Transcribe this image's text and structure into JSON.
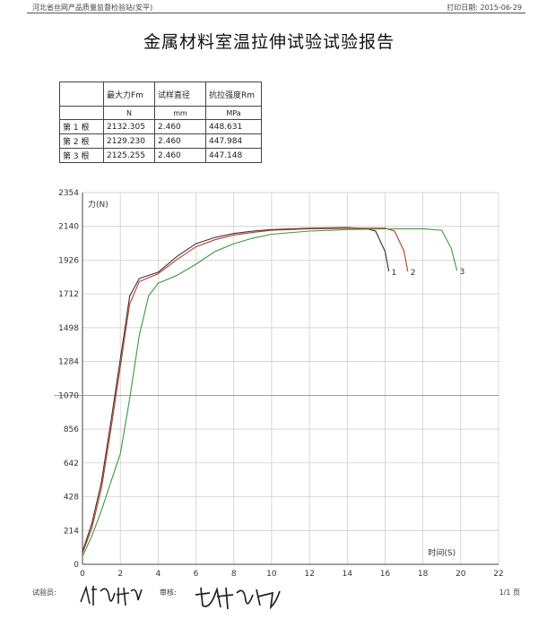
{
  "header": {
    "left": "河北省丝网产品质量监督检验站(安平)",
    "right": "打印日期: 2015-06-29"
  },
  "title": "金属材料室温拉伸试验试验报告",
  "table": {
    "headers": [
      "",
      "最大力Fm",
      "试样直径",
      "抗拉强度Rm"
    ],
    "units": [
      "",
      "N",
      "mm",
      "MPa"
    ],
    "rows": [
      [
        "第 1 根",
        "2132.305",
        "2.460",
        "448.631"
      ],
      [
        "第 2 根",
        "2129.230",
        "2.460",
        "447.984"
      ],
      [
        "第 3 根",
        "2125.255",
        "2.460",
        "447.148"
      ]
    ]
  },
  "chart_data": {
    "type": "line",
    "ylabel": "力(N)",
    "xlabel": "时间(S)",
    "xlim": [
      0,
      22
    ],
    "x_ticks": [
      "0",
      "2",
      "4",
      "6",
      "8",
      "10",
      "12",
      "14",
      "16",
      "18",
      "20",
      "22"
    ],
    "y_ticks": [
      "0",
      "214",
      "428",
      "642",
      "856",
      "1070",
      "1284",
      "1498",
      "1712",
      "1926",
      "2140",
      "2354"
    ],
    "grid": true,
    "colors": [
      "#333333",
      "#c0392b",
      "#3a9a3a"
    ],
    "series": [
      {
        "name": "1",
        "x": [
          0,
          0.5,
          1,
          1.5,
          2,
          2.5,
          3,
          4,
          5,
          6,
          7,
          8,
          9,
          10,
          12,
          14,
          15,
          15.5,
          16,
          16.2
        ],
        "y": [
          80,
          260,
          520,
          900,
          1300,
          1700,
          1810,
          1850,
          1950,
          2030,
          2070,
          2095,
          2110,
          2120,
          2128,
          2132,
          2125,
          2110,
          1980,
          1855
        ]
      },
      {
        "name": "2",
        "x": [
          0,
          0.5,
          1,
          1.5,
          2,
          2.5,
          3,
          4,
          5,
          6,
          7,
          8,
          9,
          10,
          12,
          14,
          16,
          16.5,
          17,
          17.2
        ],
        "y": [
          70,
          230,
          480,
          850,
          1250,
          1650,
          1790,
          1840,
          1930,
          2010,
          2055,
          2085,
          2102,
          2115,
          2124,
          2128,
          2129,
          2110,
          1985,
          1855
        ]
      },
      {
        "name": "3",
        "x": [
          0,
          0.5,
          1,
          1.5,
          2,
          2.5,
          3,
          3.5,
          4,
          5,
          6,
          7,
          8,
          9,
          10,
          12,
          14,
          16,
          18,
          19,
          19.5,
          19.8
        ],
        "y": [
          50,
          180,
          340,
          520,
          700,
          1050,
          1450,
          1700,
          1780,
          1830,
          1900,
          1980,
          2030,
          2065,
          2090,
          2110,
          2120,
          2124,
          2125,
          2115,
          2000,
          1860
        ]
      }
    ]
  },
  "footer": {
    "tester_label": "试验员:",
    "reviewer_label": "审核:",
    "page": "1/1 页"
  }
}
